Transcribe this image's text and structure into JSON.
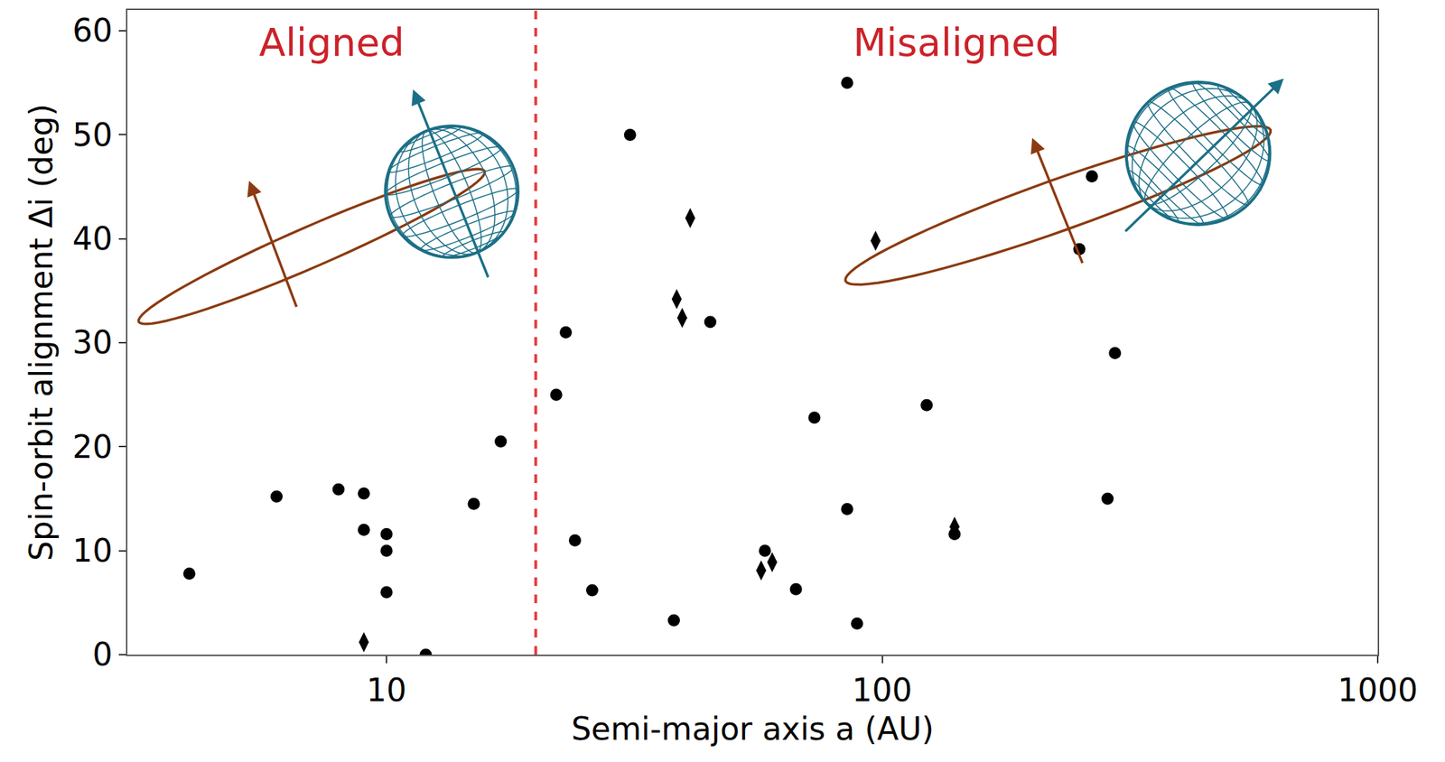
{
  "chart_data": {
    "type": "scatter",
    "x_label": "Semi-major axis a (AU)",
    "y_label": "Spin-orbit alignment Δi (deg)",
    "log": "x",
    "grid": false,
    "xlim": [
      3,
      1000
    ],
    "xticks": [
      10,
      100,
      1000
    ],
    "ylim": [
      0,
      62
    ],
    "yticks": [
      0,
      10,
      20,
      30,
      40,
      50,
      60
    ],
    "series": [
      {
        "marker": "circle",
        "color": "#000000",
        "x": [
          4,
          6,
          8,
          9,
          9,
          10,
          10,
          10,
          12,
          15,
          17,
          22,
          23,
          24,
          26,
          31,
          38,
          45,
          58,
          67,
          73,
          85,
          85,
          89,
          123,
          140,
          250,
          265,
          285,
          295
        ],
        "values": [
          7.8,
          15.2,
          15.9,
          15.5,
          12,
          11.6,
          10,
          6,
          0,
          14.5,
          20.5,
          25,
          31,
          11,
          6.2,
          50,
          3.3,
          32,
          10,
          6.3,
          22.8,
          55,
          14,
          3,
          24,
          11.6,
          39,
          46,
          15,
          29
        ]
      },
      {
        "marker": "diamond-tall",
        "color": "#000000",
        "x": [
          9,
          41,
          38.5,
          39.5,
          57,
          60,
          97,
          140
        ],
        "values": [
          1.2,
          42,
          34.2,
          32.4,
          8.1,
          8.9,
          39.8,
          12.3
        ]
      }
    ],
    "threshold": {
      "value": 20,
      "color": "#e8383d",
      "line_style": "dash"
    },
    "annotations": [
      {
        "text": "Aligned",
        "color": "#cc2229"
      },
      {
        "text": "Misaligned",
        "color": "#cc2229"
      }
    ]
  }
}
